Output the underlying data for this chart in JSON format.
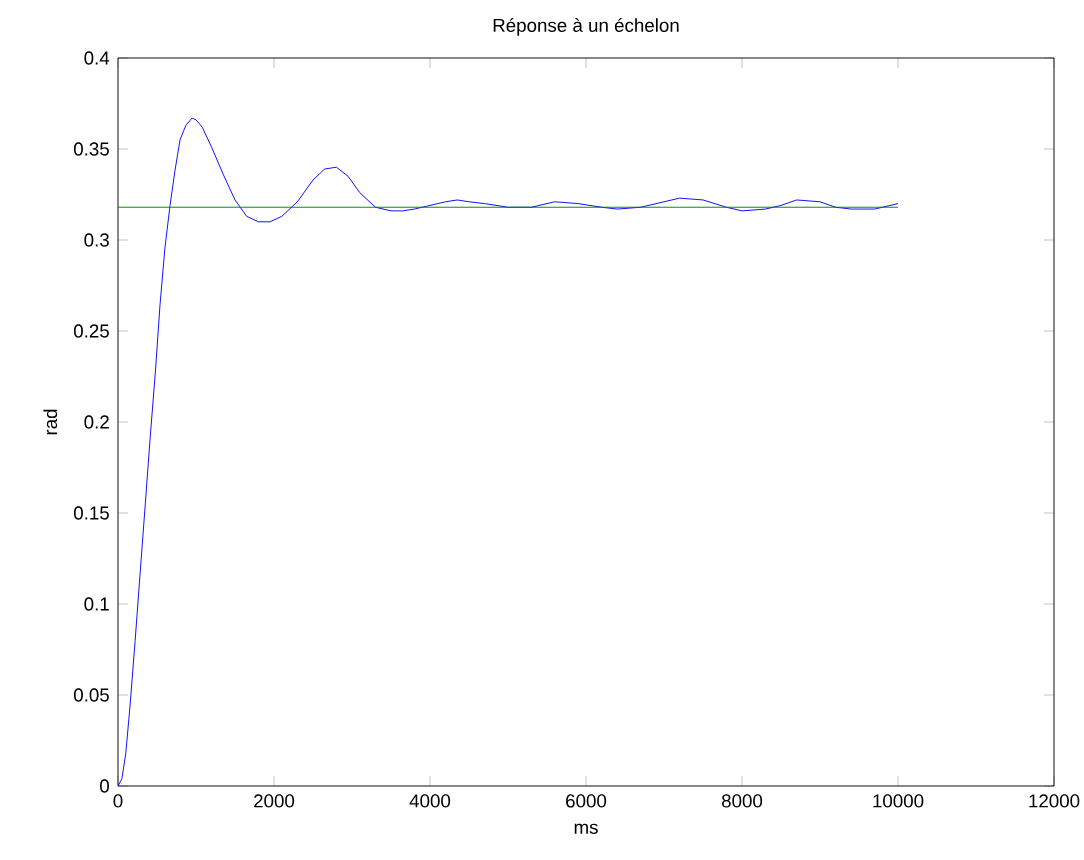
{
  "chart_data": {
    "type": "line",
    "title": "Réponse à un échelon",
    "xlabel": "ms",
    "ylabel": "rad",
    "xlim": [
      0,
      12000
    ],
    "ylim": [
      0,
      0.4
    ],
    "xticks": [
      0,
      2000,
      4000,
      6000,
      8000,
      10000,
      12000
    ],
    "yticks": [
      0,
      0.05,
      0.1,
      0.15,
      0.2,
      0.25,
      0.3,
      0.35,
      0.4
    ],
    "series": [
      {
        "color": "#0000ff",
        "x": [
          0,
          50,
          100,
          154,
          220,
          282,
          350,
          410,
          480,
          538,
          600,
          667,
          730,
          795,
          870,
          950,
          1000,
          1080,
          1200,
          1350,
          1500,
          1650,
          1800,
          1950,
          2100,
          2300,
          2500,
          2650,
          2800,
          2950,
          3100,
          3300,
          3500,
          3650,
          3800,
          4000,
          4200,
          4350,
          4500,
          4700,
          5000,
          5300,
          5600,
          5900,
          6200,
          6400,
          6700,
          7000,
          7200,
          7500,
          7800,
          8000,
          8300,
          8500,
          8700,
          9000,
          9200,
          9400,
          9700,
          10000
        ],
        "values": [
          0,
          0.004,
          0.018,
          0.044,
          0.08,
          0.116,
          0.155,
          0.19,
          0.228,
          0.264,
          0.295,
          0.319,
          0.338,
          0.355,
          0.363,
          0.367,
          0.366,
          0.362,
          0.351,
          0.336,
          0.322,
          0.313,
          0.31,
          0.31,
          0.313,
          0.321,
          0.333,
          0.339,
          0.34,
          0.335,
          0.326,
          0.318,
          0.316,
          0.316,
          0.317,
          0.319,
          0.321,
          0.322,
          0.321,
          0.32,
          0.318,
          0.318,
          0.321,
          0.32,
          0.318,
          0.317,
          0.318,
          0.321,
          0.323,
          0.322,
          0.318,
          0.316,
          0.317,
          0.319,
          0.322,
          0.321,
          0.318,
          0.317,
          0.317,
          0.32
        ]
      },
      {
        "color": "#007f00",
        "x": [
          0,
          10000
        ],
        "values": [
          0.318,
          0.318
        ]
      }
    ]
  }
}
